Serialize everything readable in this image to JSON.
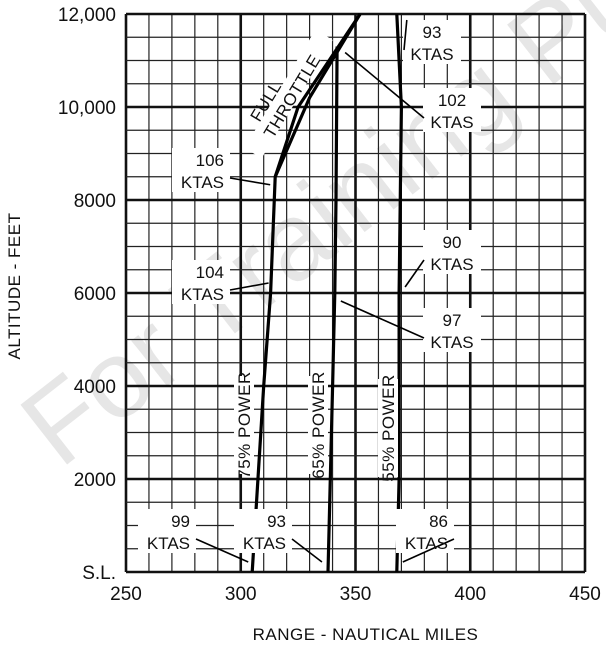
{
  "chart_data": {
    "type": "line",
    "xlabel": "RANGE - NAUTICAL MILES",
    "ylabel": "ALTITUDE - FEET",
    "xlim": [
      250,
      450
    ],
    "ylim": [
      0,
      12000
    ],
    "x_ticks": [
      250,
      300,
      350,
      400,
      450
    ],
    "x_tick_labels": [
      "250",
      "300",
      "350",
      "400",
      "450"
    ],
    "y_ticks": [
      0,
      2000,
      4000,
      6000,
      8000,
      10000,
      12000
    ],
    "y_tick_labels": [
      "S.L.",
      "2000",
      "4000",
      "6000",
      "8000",
      "10,000",
      "12,000"
    ],
    "grid": true,
    "series": [
      {
        "name": "75% POWER",
        "points": [
          [
            305,
            0
          ],
          [
            310,
            4000
          ],
          [
            313,
            6000
          ],
          [
            315,
            8500
          ],
          [
            325,
            10000
          ],
          [
            352,
            12000
          ]
        ]
      },
      {
        "name": "65% POWER",
        "points": [
          [
            338,
            0
          ],
          [
            340,
            4000
          ],
          [
            341,
            6000
          ],
          [
            341.5,
            8000
          ],
          [
            342,
            11300
          ]
        ]
      },
      {
        "name": "55% POWER",
        "points": [
          [
            368,
            0
          ],
          [
            369,
            2000
          ],
          [
            369,
            6000
          ],
          [
            370,
            10000
          ],
          [
            368,
            12000
          ]
        ]
      },
      {
        "name": "FULL THROTTLE",
        "points": [
          [
            315,
            8500
          ],
          [
            330,
            10200
          ],
          [
            352,
            12000
          ]
        ]
      }
    ],
    "annotations": [
      {
        "text": "106 KTAS",
        "line1": "106",
        "line2": "KTAS",
        "x": 315,
        "y": 8500
      },
      {
        "text": "104 KTAS",
        "line1": "104",
        "line2": "KTAS",
        "x": 313,
        "y": 6000
      },
      {
        "text": "99 KTAS",
        "line1": "99",
        "line2": "KTAS",
        "x": 305,
        "y": 0
      },
      {
        "text": "93 KTAS",
        "line1": "93",
        "line2": "KTAS",
        "x": 338,
        "y": 0
      },
      {
        "text": "86 KTAS",
        "line1": "86",
        "line2": "KTAS",
        "x": 368,
        "y": 0
      },
      {
        "text": "93 KTAS",
        "line1": "93",
        "line2": "KTAS",
        "x": 368,
        "y": 12000
      },
      {
        "text": "102 KTAS",
        "line1": "102",
        "line2": "KTAS",
        "x": 342,
        "y": 11300
      },
      {
        "text": "90 KTAS",
        "line1": "90",
        "line2": "KTAS",
        "x": 369,
        "y": 6000
      },
      {
        "text": "97 KTAS",
        "line1": "97",
        "line2": "KTAS",
        "x": 341,
        "y": 6000
      }
    ]
  },
  "watermark": "For Training Purposes"
}
